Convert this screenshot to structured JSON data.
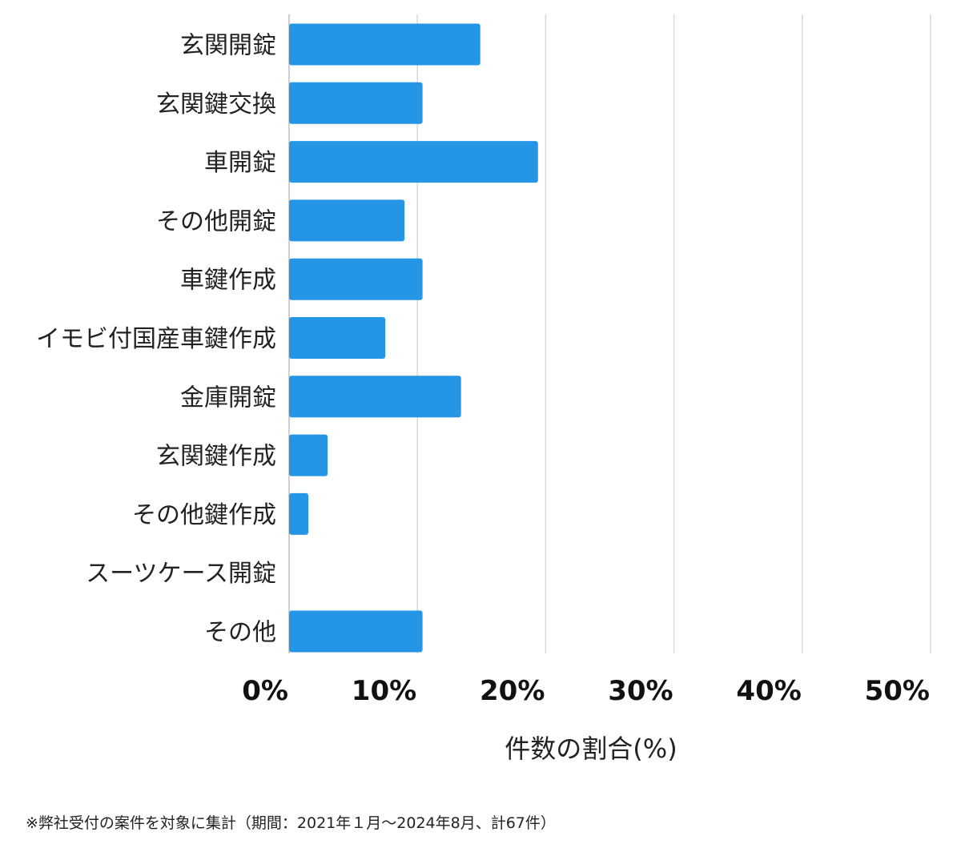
{
  "chart_data": {
    "type": "bar",
    "orientation": "horizontal",
    "categories": [
      "玄関開錠",
      "玄関鍵交換",
      "車開錠",
      "その他開錠",
      "車鍵作成",
      "イモビ付国産車鍵作成",
      "金庫開錠",
      "玄関鍵作成",
      "その他鍵作成",
      "スーツケース開錠",
      "その他"
    ],
    "values": [
      14.9,
      10.4,
      19.4,
      9.0,
      10.4,
      7.5,
      13.4,
      3.0,
      1.5,
      0,
      10.4
    ],
    "x_ticks": [
      "0%",
      "10%",
      "20%",
      "30%",
      "40%",
      "50%"
    ],
    "xlim": [
      0,
      50
    ],
    "xlabel": "件数の割合(%)",
    "ylabel": "",
    "title": "",
    "grid": true,
    "bar_color": "#2596e6"
  },
  "footnote": "※弊社受付の案件を対象に集計（期間：2021年１月～2024年8月、計67件）"
}
